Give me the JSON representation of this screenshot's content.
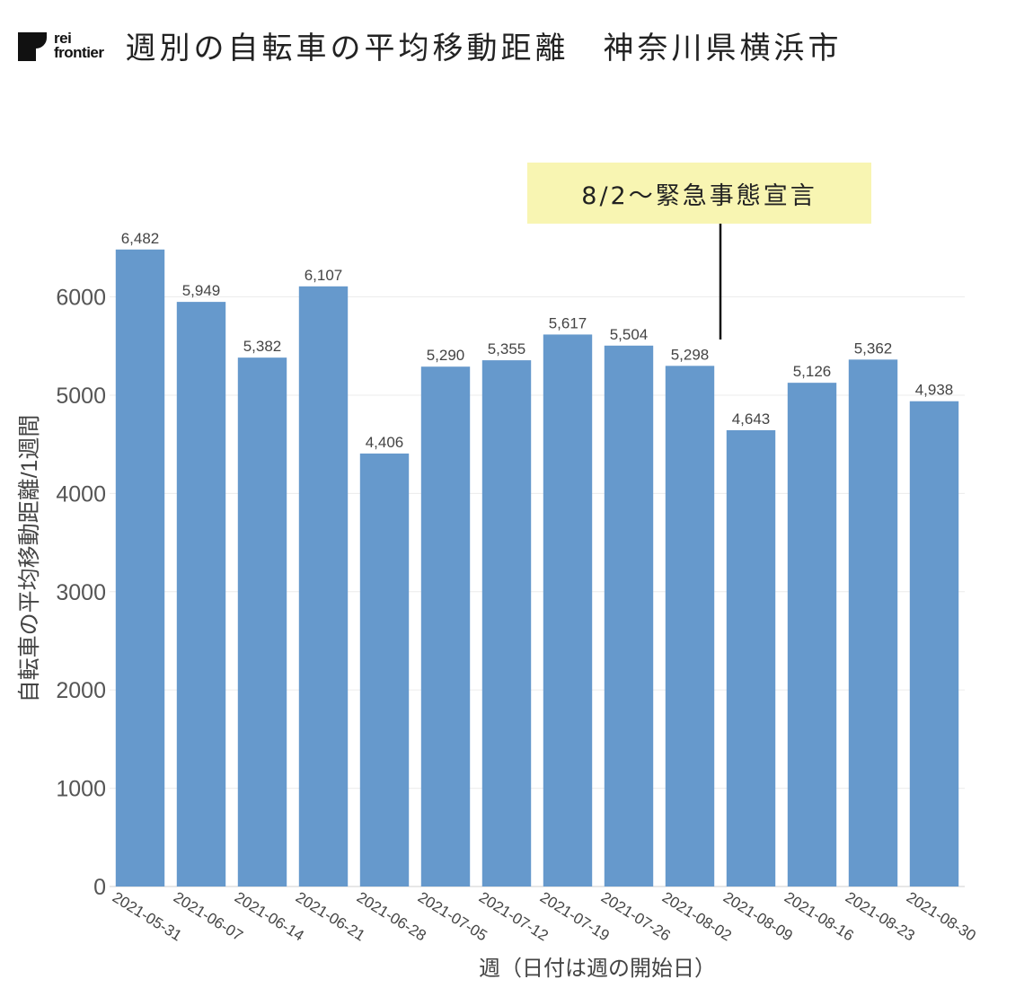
{
  "header": {
    "logo_line1": "rei",
    "logo_line2": "frontier",
    "title_main": "週別の自転車の平均移動距離",
    "title_region": "神奈川県横浜市"
  },
  "annotation": {
    "text": "8/2～緊急事態宣言",
    "category": "2021-08-02",
    "background": "#f8f5b2"
  },
  "chart_data": {
    "type": "bar",
    "xlabel": "週（日付は週の開始日）",
    "ylabel": "自転車の平均移動距離/1週間",
    "ylim": [
      0,
      6800
    ],
    "yticks": [
      0,
      1000,
      2000,
      3000,
      4000,
      5000,
      6000
    ],
    "grid": true,
    "bar_color": "#6699cc",
    "categories": [
      "2021-05-31",
      "2021-06-07",
      "2021-06-14",
      "2021-06-21",
      "2021-06-28",
      "2021-07-05",
      "2021-07-12",
      "2021-07-19",
      "2021-07-26",
      "2021-08-02",
      "2021-08-09",
      "2021-08-16",
      "2021-08-23",
      "2021-08-30"
    ],
    "values": [
      6482,
      5949,
      5382,
      6107,
      4406,
      5290,
      5355,
      5617,
      5504,
      5298,
      4643,
      5126,
      5362,
      4938
    ],
    "value_labels": [
      "6,482",
      "5,949",
      "5,382",
      "6,107",
      "4,406",
      "5,290",
      "5,355",
      "5,617",
      "5,504",
      "5,298",
      "4,643",
      "5,126",
      "5,362",
      "4,938"
    ]
  }
}
